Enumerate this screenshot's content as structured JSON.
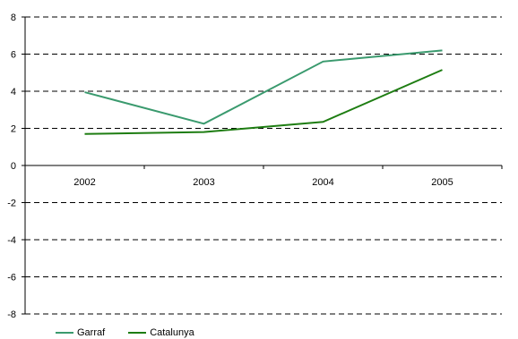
{
  "chart_data": {
    "type": "line",
    "categories": [
      "2002",
      "2003",
      "2004",
      "2005"
    ],
    "series": [
      {
        "name": "Garraf",
        "color": "#3a9a6e",
        "values": [
          3.95,
          2.25,
          5.6,
          6.2
        ]
      },
      {
        "name": "Catalunya",
        "color": "#1e7d12",
        "values": [
          1.7,
          1.8,
          2.35,
          5.15
        ]
      }
    ],
    "ylim": [
      -8,
      8
    ],
    "yticks": [
      "8",
      "6",
      "4",
      "2",
      "0",
      "-2",
      "-4",
      "-6",
      "-8"
    ],
    "grid": "dashed horizontal",
    "legend": "bottom-left",
    "title": "",
    "xlabel": "",
    "ylabel": ""
  }
}
